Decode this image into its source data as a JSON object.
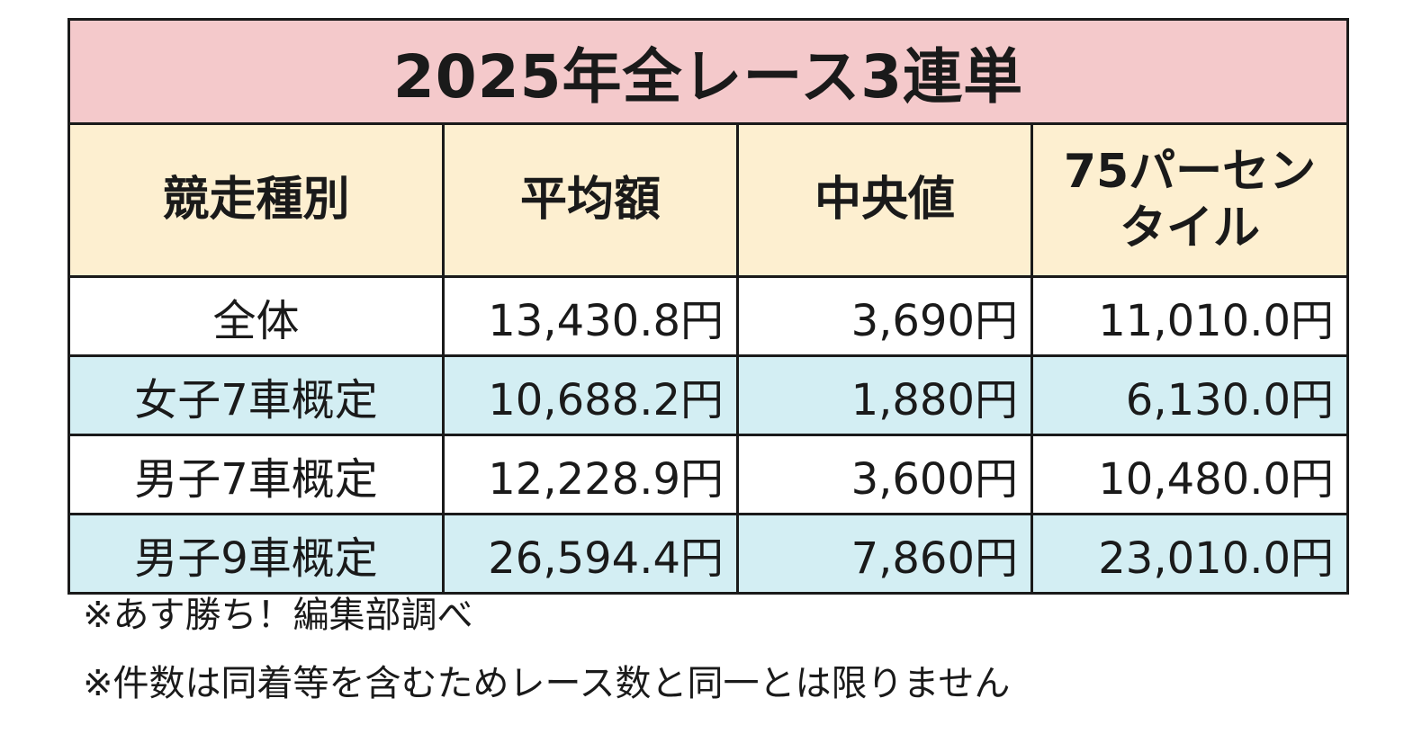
{
  "table": {
    "title": "2025年全レース3連単",
    "headers": [
      "競走種別",
      "平均額",
      "中央値",
      "75パーセン",
      "タイル"
    ],
    "rows": [
      {
        "category": "全体",
        "mean": "13,430.8円",
        "median": "3,690円",
        "p75": "11,010.0円"
      },
      {
        "category": "女子7車概定",
        "mean": "10,688.2円",
        "median": "1,880円",
        "p75": "6,130.0円"
      },
      {
        "category": "男子7車概定",
        "mean": "12,228.9円",
        "median": "3,600円",
        "p75": "10,480.0円"
      },
      {
        "category": "男子9車概定",
        "mean": "26,594.4円",
        "median": "7,860円",
        "p75": "23,010.0円"
      }
    ]
  },
  "notes": [
    "※あす勝ち！編集部調べ",
    "※件数は同着等を含むためレース数と同一とは限りません"
  ],
  "colors": {
    "title_bg": "#f4c9cb",
    "header_bg": "#fdefd0",
    "stripe_bg": "#d3eef3",
    "border": "#1a1a1a"
  }
}
